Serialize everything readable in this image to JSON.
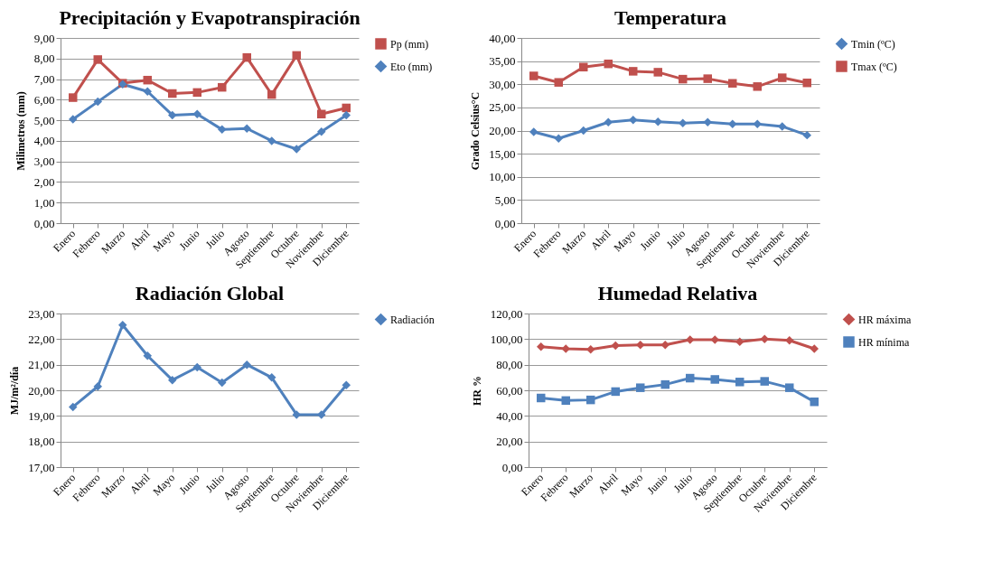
{
  "chart_data": [
    {
      "type": "line",
      "title": "Precipitación y Evapotranspiración",
      "ylabel": "Milimetros (mm)",
      "categories": [
        "Enero",
        "Febrero",
        "Marzo",
        "Abril",
        "Mayo",
        "Junio",
        "Julio",
        "Agosto",
        "Septiembre",
        "Octubre",
        "Noviembre",
        "Diciembre"
      ],
      "series": [
        {
          "name": "Pp (mm)",
          "color": "#c0504d",
          "marker": "square",
          "values": [
            6.1,
            7.95,
            6.8,
            6.95,
            6.3,
            6.35,
            6.6,
            8.05,
            6.25,
            8.15,
            5.3,
            5.6
          ]
        },
        {
          "name": "Eto (mm)",
          "color": "#4f81bd",
          "marker": "diamond",
          "values": [
            5.05,
            5.9,
            6.75,
            6.4,
            5.25,
            5.3,
            4.55,
            4.6,
            4.0,
            3.6,
            4.45,
            5.25
          ]
        }
      ],
      "ylim": [
        0,
        9
      ],
      "yticks": [
        {
          "value": 0,
          "label": "0,00"
        },
        {
          "value": 1,
          "label": "1,00"
        },
        {
          "value": 2,
          "label": "2,00"
        },
        {
          "value": 3,
          "label": "3,00"
        },
        {
          "value": 4,
          "label": "4,00"
        },
        {
          "value": 5,
          "label": "5,00"
        },
        {
          "value": 6,
          "label": "6,00"
        },
        {
          "value": 7,
          "label": "7,00"
        },
        {
          "value": 8,
          "label": "8,00"
        },
        {
          "value": 9,
          "label": "9,00"
        }
      ],
      "grid": "y",
      "legend": "right"
    },
    {
      "type": "line",
      "title": "Temperatura",
      "ylabel": "Grado Celsius°C",
      "categories": [
        "Enero",
        "Febrero",
        "Marzo",
        "Abril",
        "Mayo",
        "Junio",
        "Julio",
        "Agosto",
        "Septiembre",
        "Octubre",
        "Noviembre",
        "Diciembre"
      ],
      "series": [
        {
          "name": "Tmin (ºC)",
          "color": "#4f81bd",
          "marker": "diamond",
          "values": [
            19.7,
            18.3,
            20.0,
            21.8,
            22.3,
            21.9,
            21.6,
            21.8,
            21.4,
            21.4,
            20.9,
            19.0
          ]
        },
        {
          "name": "Tmax (ºC)",
          "color": "#c0504d",
          "marker": "square",
          "values": [
            31.8,
            30.4,
            33.7,
            34.4,
            32.8,
            32.6,
            31.1,
            31.2,
            30.2,
            29.5,
            31.4,
            30.3
          ]
        }
      ],
      "ylim": [
        0,
        40
      ],
      "yticks": [
        {
          "value": 0,
          "label": "0,00"
        },
        {
          "value": 5,
          "label": "5,00"
        },
        {
          "value": 10,
          "label": "10,00"
        },
        {
          "value": 15,
          "label": "15,00"
        },
        {
          "value": 20,
          "label": "20,00"
        },
        {
          "value": 25,
          "label": "25,00"
        },
        {
          "value": 30,
          "label": "30,00"
        },
        {
          "value": 35,
          "label": "35,00"
        },
        {
          "value": 40,
          "label": "40,00"
        }
      ],
      "grid": "y",
      "legend": "right"
    },
    {
      "type": "line",
      "title": "Radiación Global",
      "ylabel": "MJ/m²/día",
      "categories": [
        "Enero",
        "Febrero",
        "Marzo",
        "Abril",
        "Mayo",
        "Junio",
        "Julio",
        "Agosto",
        "Septiembre",
        "Octubre",
        "Noviembre",
        "Diciembre"
      ],
      "series": [
        {
          "name": "Radiación",
          "color": "#4f81bd",
          "marker": "diamond",
          "values": [
            19.35,
            20.15,
            22.55,
            21.35,
            20.4,
            20.9,
            20.3,
            21.0,
            20.5,
            19.05,
            19.05,
            20.2
          ]
        }
      ],
      "ylim": [
        17,
        23
      ],
      "yticks": [
        {
          "value": 17,
          "label": "17,00"
        },
        {
          "value": 18,
          "label": "18,00"
        },
        {
          "value": 19,
          "label": "19,00"
        },
        {
          "value": 20,
          "label": "20,00"
        },
        {
          "value": 21,
          "label": "21,00"
        },
        {
          "value": 22,
          "label": "22,00"
        },
        {
          "value": 23,
          "label": "23,00"
        }
      ],
      "grid": "y",
      "legend": "right"
    },
    {
      "type": "line",
      "title": "Humedad Relativa",
      "ylabel": "HR %",
      "categories": [
        "Enero",
        "Febrero",
        "Marzo",
        "Abril",
        "Mayo",
        "Junio",
        "Julio",
        "Agosto",
        "Septiembre",
        "Octubre",
        "Noviembre",
        "Diciembre"
      ],
      "series": [
        {
          "name": "HR máxima",
          "color": "#c0504d",
          "marker": "diamond",
          "values": [
            94,
            92.5,
            92,
            95,
            95.5,
            95.5,
            99.5,
            99.5,
            98,
            100,
            99,
            92.5
          ]
        },
        {
          "name": "HR mínima",
          "color": "#4f81bd",
          "marker": "square",
          "values": [
            54,
            52,
            52.5,
            59,
            62,
            64.5,
            69.5,
            68.5,
            66.5,
            67,
            62,
            51
          ]
        }
      ],
      "ylim": [
        0,
        120
      ],
      "yticks": [
        {
          "value": 0,
          "label": "0,00"
        },
        {
          "value": 20,
          "label": "20,00"
        },
        {
          "value": 40,
          "label": "40,00"
        },
        {
          "value": 60,
          "label": "60,00"
        },
        {
          "value": 80,
          "label": "80,00"
        },
        {
          "value": 100,
          "label": "100,00"
        },
        {
          "value": 120,
          "label": "120,00"
        }
      ],
      "grid": "y",
      "legend": "right"
    }
  ]
}
